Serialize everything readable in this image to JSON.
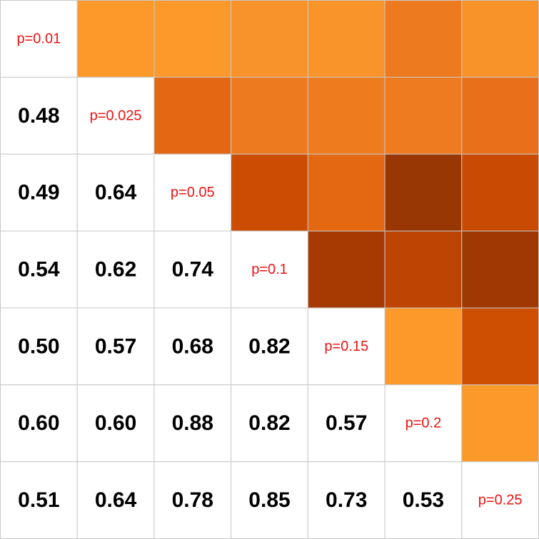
{
  "chart_data": {
    "type": "heatmap",
    "title": "",
    "xlabel": "",
    "ylabel": "",
    "n": 7,
    "diagonal_labels": [
      "p=0.01",
      "p=0.025",
      "p=0.05",
      "p=0.1",
      "p=0.15",
      "p=0.2",
      "p=0.25"
    ],
    "lower_values": [
      [
        null,
        null,
        null,
        null,
        null,
        null,
        null
      ],
      [
        "0.48",
        null,
        null,
        null,
        null,
        null,
        null
      ],
      [
        "0.49",
        "0.64",
        null,
        null,
        null,
        null,
        null
      ],
      [
        "0.54",
        "0.62",
        "0.74",
        null,
        null,
        null,
        null
      ],
      [
        "0.50",
        "0.57",
        "0.68",
        "0.82",
        null,
        null,
        null
      ],
      [
        "0.60",
        "0.60",
        "0.88",
        "0.82",
        "0.57",
        null,
        null
      ],
      [
        "0.51",
        "0.64",
        "0.78",
        "0.85",
        "0.73",
        "0.53",
        null
      ]
    ],
    "upper_colors": [
      [
        null,
        "#fb9a2b",
        "#fb9a2b",
        "#f8922a",
        "#f8942a",
        "#ee7a20",
        "#f8932a"
      ],
      [
        null,
        null,
        "#e46713",
        "#ee7a1f",
        "#ef7b1f",
        "#ee7b1f",
        "#e8701a"
      ],
      [
        null,
        null,
        null,
        "#cc4d02",
        "#e46712",
        "#983604",
        "#c94a02"
      ],
      [
        null,
        null,
        null,
        null,
        "#a73a03",
        "#bd4402",
        "#9f3803"
      ],
      [
        null,
        null,
        null,
        null,
        null,
        "#fb9a2b",
        "#ce4f02"
      ],
      [
        null,
        null,
        null,
        null,
        null,
        null,
        "#fb9a2b"
      ],
      [
        null,
        null,
        null,
        null,
        null,
        null,
        null
      ]
    ],
    "colors": {
      "diagonal_text": "#ee1111",
      "value_text": "#000000",
      "grid": "#c8c8c8",
      "empty": "#ffffff"
    }
  }
}
